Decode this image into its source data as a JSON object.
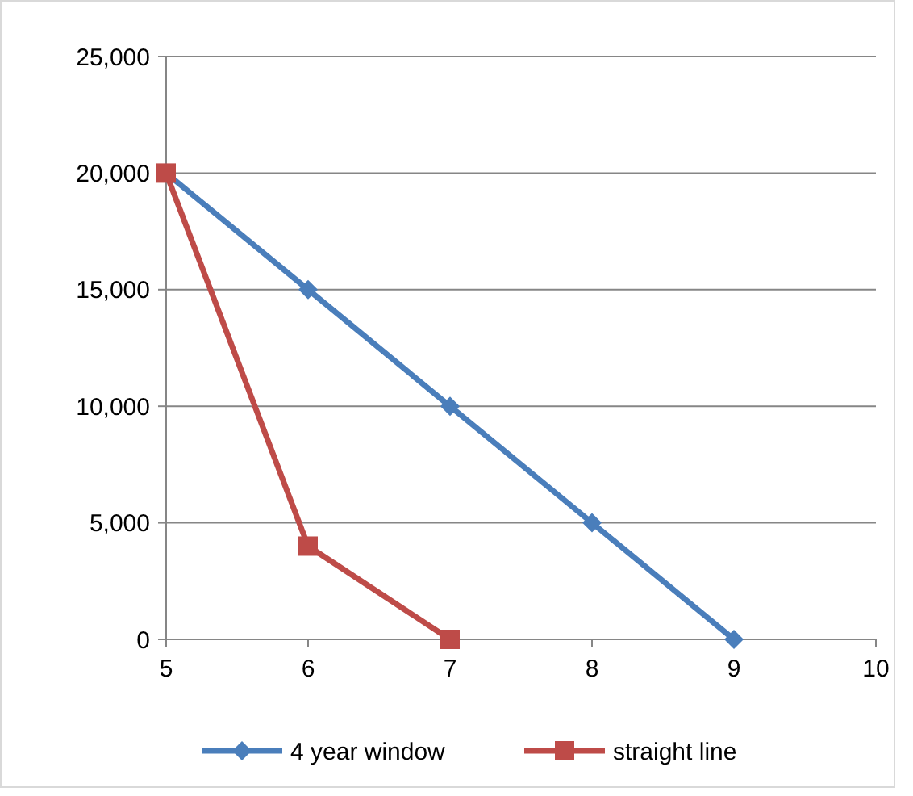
{
  "chart_data": {
    "type": "line",
    "x": [
      5,
      6,
      7,
      8,
      9
    ],
    "series": [
      {
        "name": "4 year window",
        "color": "#4a7ebb",
        "marker": "diamond",
        "values": [
          20000,
          15000,
          10000,
          5000,
          0
        ]
      },
      {
        "name": "straight line",
        "color": "#be4b48",
        "marker": "square",
        "x": [
          5,
          6,
          7
        ],
        "values": [
          20000,
          4000,
          0
        ]
      }
    ],
    "xlim": [
      5,
      10
    ],
    "xticks": [
      5,
      6,
      7,
      8,
      9,
      10
    ],
    "ylim": [
      0,
      25000
    ],
    "yticks": [
      {
        "value": 0,
        "label": "0"
      },
      {
        "value": 5000,
        "label": "5,000"
      },
      {
        "value": 10000,
        "label": "10,000"
      },
      {
        "value": 15000,
        "label": "15,000"
      },
      {
        "value": 20000,
        "label": "20,000"
      },
      {
        "value": 25000,
        "label": "25,000"
      }
    ],
    "grid": "y",
    "legend": "bottom",
    "line_style": "solid"
  }
}
